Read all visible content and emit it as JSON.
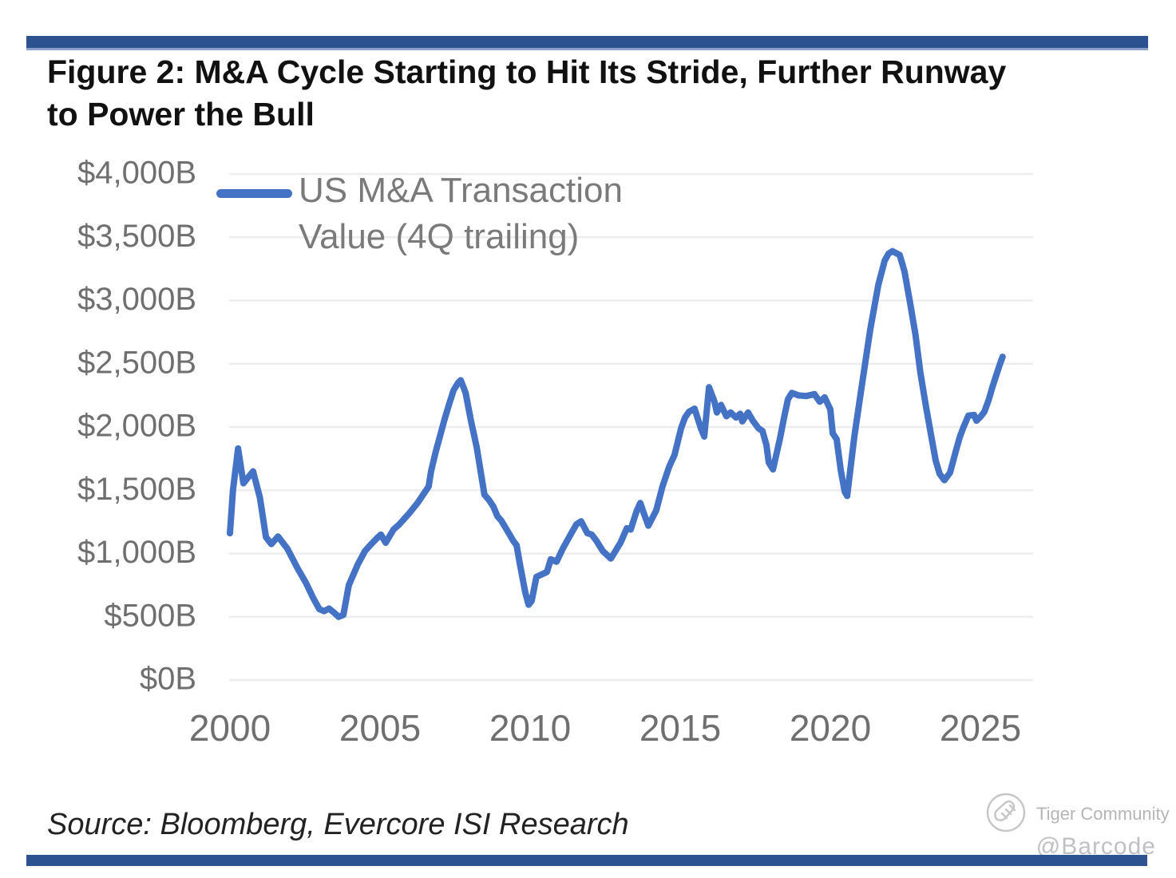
{
  "figure": {
    "title_line1": "Figure 2: M&A Cycle Starting to Hit Its Stride, Further Runway",
    "title_line2": "to Power the Bull",
    "source": "Source: Bloomberg, Evercore ISI Research"
  },
  "watermark": {
    "community": "Tiger Community",
    "handle": "@Barcode"
  },
  "colors": {
    "line": "#4472C4",
    "divider_bar": "#2d5290",
    "grid": "#ededed",
    "axis_text": "#6f6f6f",
    "legend_text": "#7a7a7a",
    "watermark_gray": "#c6c6c6"
  },
  "chart_data": {
    "type": "line",
    "title": "",
    "xlabel": "",
    "ylabel": "",
    "legend_position": "top-left-inside",
    "grid": "horizontal-only",
    "legend_lines": [
      "US M&A Transaction",
      "Value (4Q trailing)"
    ],
    "x_ticks": [
      {
        "label": "2000",
        "value": 2000
      },
      {
        "label": "2005",
        "value": 2005
      },
      {
        "label": "2010",
        "value": 2010
      },
      {
        "label": "2015",
        "value": 2015
      },
      {
        "label": "2020",
        "value": 2020
      },
      {
        "label": "2025",
        "value": 2025
      }
    ],
    "y_ticks": [
      {
        "label": "$4,000B",
        "value": 4000
      },
      {
        "label": "$3,500B",
        "value": 3500
      },
      {
        "label": "$3,000B",
        "value": 3000
      },
      {
        "label": "$2,500B",
        "value": 2500
      },
      {
        "label": "$2,000B",
        "value": 2000
      },
      {
        "label": "$1,500B",
        "value": 1500
      },
      {
        "label": "$1,000B",
        "value": 1000
      },
      {
        "label": "$500B",
        "value": 500
      },
      {
        "label": "$0B",
        "value": 0
      }
    ],
    "xlim": [
      2000,
      2026.8
    ],
    "ylim": [
      0,
      4000
    ],
    "series": [
      {
        "name": "US M&A Transaction Value (4Q trailing)",
        "units": "billions USD",
        "points": [
          [
            2000.0,
            1160
          ],
          [
            2000.1,
            1500
          ],
          [
            2000.27,
            1830
          ],
          [
            2000.45,
            1555
          ],
          [
            2000.6,
            1600
          ],
          [
            2000.77,
            1650
          ],
          [
            2001.0,
            1440
          ],
          [
            2001.2,
            1130
          ],
          [
            2001.38,
            1075
          ],
          [
            2001.6,
            1135
          ],
          [
            2001.91,
            1040
          ],
          [
            2002.26,
            880
          ],
          [
            2002.53,
            770
          ],
          [
            2002.77,
            650
          ],
          [
            2002.98,
            560
          ],
          [
            2003.14,
            545
          ],
          [
            2003.3,
            565
          ],
          [
            2003.46,
            535
          ],
          [
            2003.62,
            500
          ],
          [
            2003.78,
            515
          ],
          [
            2003.96,
            750
          ],
          [
            2004.26,
            915
          ],
          [
            2004.5,
            1020
          ],
          [
            2004.71,
            1075
          ],
          [
            2004.89,
            1120
          ],
          [
            2005.03,
            1150
          ],
          [
            2005.19,
            1085
          ],
          [
            2005.45,
            1190
          ],
          [
            2005.64,
            1230
          ],
          [
            2005.98,
            1320
          ],
          [
            2006.25,
            1400
          ],
          [
            2006.62,
            1530
          ],
          [
            2006.7,
            1650
          ],
          [
            2006.85,
            1800
          ],
          [
            2007.0,
            1930
          ],
          [
            2007.15,
            2060
          ],
          [
            2007.3,
            2180
          ],
          [
            2007.45,
            2290
          ],
          [
            2007.6,
            2350
          ],
          [
            2007.69,
            2370
          ],
          [
            2007.85,
            2270
          ],
          [
            2008.03,
            2050
          ],
          [
            2008.22,
            1840
          ],
          [
            2008.35,
            1650
          ],
          [
            2008.48,
            1465
          ],
          [
            2008.64,
            1420
          ],
          [
            2008.78,
            1370
          ],
          [
            2008.91,
            1295
          ],
          [
            2009.04,
            1260
          ],
          [
            2009.28,
            1165
          ],
          [
            2009.44,
            1100
          ],
          [
            2009.55,
            1065
          ],
          [
            2009.65,
            930
          ],
          [
            2009.76,
            790
          ],
          [
            2009.84,
            690
          ],
          [
            2009.95,
            595
          ],
          [
            2010.05,
            625
          ],
          [
            2010.21,
            815
          ],
          [
            2010.43,
            840
          ],
          [
            2010.56,
            855
          ],
          [
            2010.69,
            955
          ],
          [
            2010.88,
            935
          ],
          [
            2011.09,
            1040
          ],
          [
            2011.3,
            1130
          ],
          [
            2011.54,
            1230
          ],
          [
            2011.7,
            1255
          ],
          [
            2011.91,
            1160
          ],
          [
            2012.05,
            1150
          ],
          [
            2012.21,
            1100
          ],
          [
            2012.42,
            1020
          ],
          [
            2012.69,
            960
          ],
          [
            2013.01,
            1085
          ],
          [
            2013.22,
            1200
          ],
          [
            2013.35,
            1190
          ],
          [
            2013.54,
            1330
          ],
          [
            2013.67,
            1400
          ],
          [
            2013.8,
            1310
          ],
          [
            2013.94,
            1220
          ],
          [
            2014.2,
            1340
          ],
          [
            2014.41,
            1530
          ],
          [
            2014.63,
            1685
          ],
          [
            2014.81,
            1780
          ],
          [
            2015.03,
            1990
          ],
          [
            2015.16,
            2075
          ],
          [
            2015.29,
            2120
          ],
          [
            2015.48,
            2145
          ],
          [
            2015.69,
            1990
          ],
          [
            2015.8,
            1925
          ],
          [
            2015.96,
            2315
          ],
          [
            2016.14,
            2200
          ],
          [
            2016.22,
            2115
          ],
          [
            2016.36,
            2175
          ],
          [
            2016.54,
            2085
          ],
          [
            2016.68,
            2115
          ],
          [
            2016.86,
            2075
          ],
          [
            2017.0,
            2105
          ],
          [
            2017.07,
            2045
          ],
          [
            2017.26,
            2115
          ],
          [
            2017.42,
            2050
          ],
          [
            2017.61,
            1990
          ],
          [
            2017.74,
            1970
          ],
          [
            2017.87,
            1860
          ],
          [
            2017.95,
            1720
          ],
          [
            2018.09,
            1665
          ],
          [
            2018.32,
            1905
          ],
          [
            2018.46,
            2075
          ],
          [
            2018.59,
            2220
          ],
          [
            2018.72,
            2270
          ],
          [
            2018.94,
            2250
          ],
          [
            2019.2,
            2245
          ],
          [
            2019.47,
            2260
          ],
          [
            2019.65,
            2200
          ],
          [
            2019.81,
            2235
          ],
          [
            2020.0,
            2140
          ],
          [
            2020.08,
            1950
          ],
          [
            2020.21,
            1905
          ],
          [
            2020.35,
            1655
          ],
          [
            2020.48,
            1490
          ],
          [
            2020.56,
            1455
          ],
          [
            2020.8,
            1925
          ],
          [
            2021.06,
            2345
          ],
          [
            2021.33,
            2770
          ],
          [
            2021.6,
            3125
          ],
          [
            2021.81,
            3315
          ],
          [
            2021.94,
            3370
          ],
          [
            2022.07,
            3390
          ],
          [
            2022.31,
            3360
          ],
          [
            2022.47,
            3230
          ],
          [
            2022.66,
            2980
          ],
          [
            2022.84,
            2725
          ],
          [
            2023.0,
            2430
          ],
          [
            2023.19,
            2160
          ],
          [
            2023.38,
            1905
          ],
          [
            2023.51,
            1735
          ],
          [
            2023.64,
            1630
          ],
          [
            2023.8,
            1580
          ],
          [
            2023.99,
            1640
          ],
          [
            2024.17,
            1800
          ],
          [
            2024.31,
            1920
          ],
          [
            2024.44,
            2000
          ],
          [
            2024.6,
            2090
          ],
          [
            2024.79,
            2095
          ],
          [
            2024.87,
            2050
          ],
          [
            2025.0,
            2080
          ],
          [
            2025.13,
            2120
          ],
          [
            2025.27,
            2210
          ],
          [
            2025.4,
            2315
          ],
          [
            2025.53,
            2410
          ],
          [
            2025.64,
            2490
          ],
          [
            2025.74,
            2555
          ]
        ]
      }
    ]
  }
}
